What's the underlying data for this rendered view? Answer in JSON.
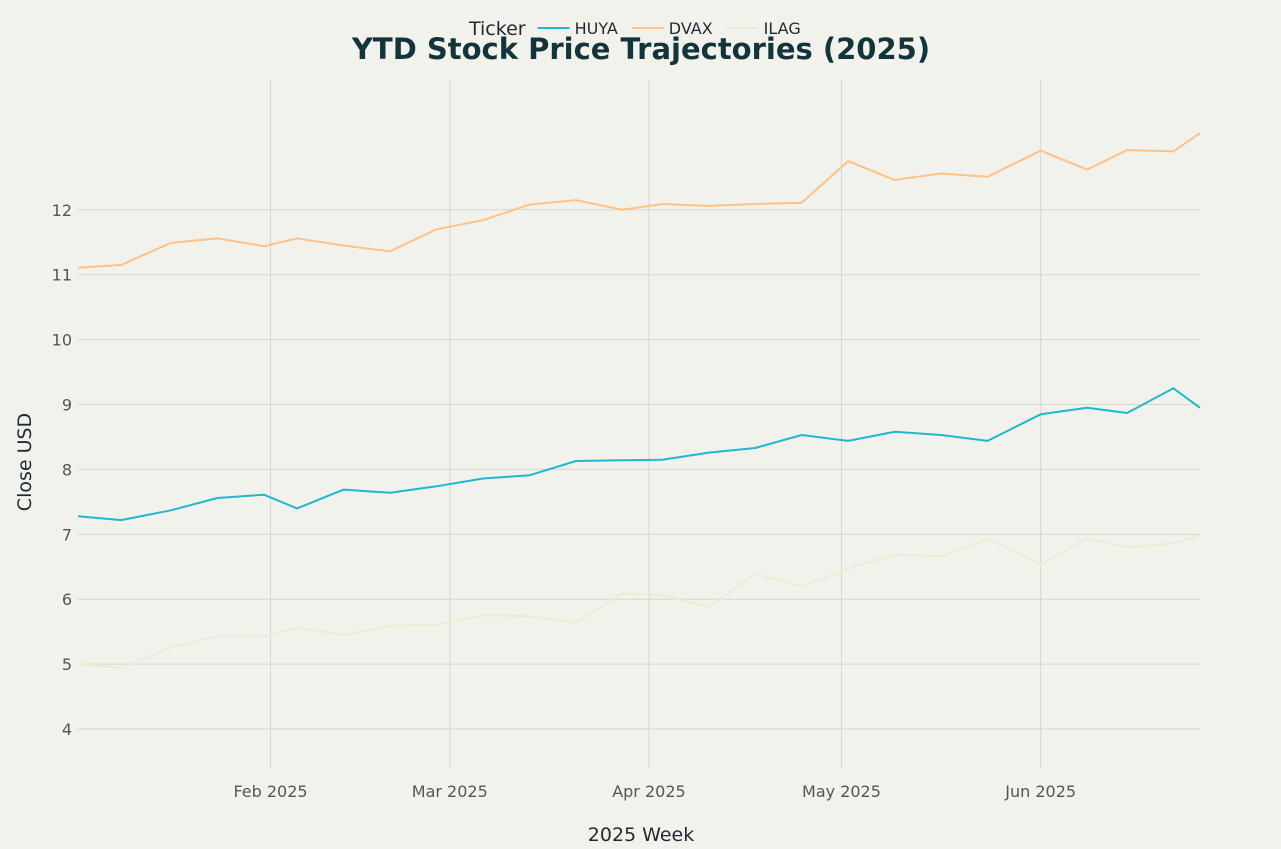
{
  "chart_data": {
    "type": "line",
    "title": "YTD Stock Price Trajectories (2025)",
    "xlabel": "2025 Week",
    "ylabel": "Close USD",
    "ylim": [
      3.4,
      14.0
    ],
    "yticks": [
      4,
      5,
      6,
      7,
      8,
      9,
      10,
      11,
      12
    ],
    "xrange_days": [
      8,
      177
    ],
    "xticks": [
      {
        "label": "Feb 2025",
        "day": 37
      },
      {
        "label": "Mar 2025",
        "day": 64
      },
      {
        "label": "Apr 2025",
        "day": 94
      },
      {
        "label": "May 2025",
        "day": 123
      },
      {
        "label": "Jun 2025",
        "day": 153
      }
    ],
    "legend": {
      "title": "Ticker",
      "position": "top"
    },
    "x_days": [
      8,
      14.5,
      22,
      29,
      36,
      41,
      48,
      55,
      62,
      69,
      76,
      83,
      90,
      96,
      103,
      110,
      117,
      124,
      131,
      138,
      145,
      153,
      160,
      166,
      173,
      177
    ],
    "series": [
      {
        "name": "HUYA",
        "color": "#1fb8cd",
        "values": [
          7.28,
          7.22,
          7.37,
          7.56,
          7.61,
          7.4,
          7.69,
          7.64,
          7.74,
          7.86,
          7.91,
          8.13,
          8.14,
          8.15,
          8.26,
          8.33,
          8.53,
          8.44,
          8.58,
          8.53,
          8.44,
          8.85,
          8.95,
          8.87,
          9.25,
          8.95
        ]
      },
      {
        "name": "DVAX",
        "color": "#ffc185",
        "values": [
          11.11,
          11.15,
          11.49,
          11.56,
          11.44,
          11.56,
          11.45,
          11.36,
          11.7,
          11.84,
          12.08,
          12.15,
          12.0,
          12.09,
          12.06,
          12.09,
          12.11,
          12.75,
          12.46,
          12.56,
          12.51,
          12.91,
          12.62,
          12.92,
          12.9,
          13.18
        ]
      },
      {
        "name": "ILAG",
        "color": "#ecebd5",
        "values": [
          5.01,
          4.94,
          5.26,
          5.43,
          5.43,
          5.56,
          5.45,
          5.59,
          5.61,
          5.75,
          5.74,
          5.64,
          6.09,
          6.06,
          5.88,
          6.39,
          6.2,
          6.47,
          6.69,
          6.66,
          6.93,
          6.54,
          6.94,
          6.8,
          6.86,
          6.99
        ]
      }
    ]
  }
}
